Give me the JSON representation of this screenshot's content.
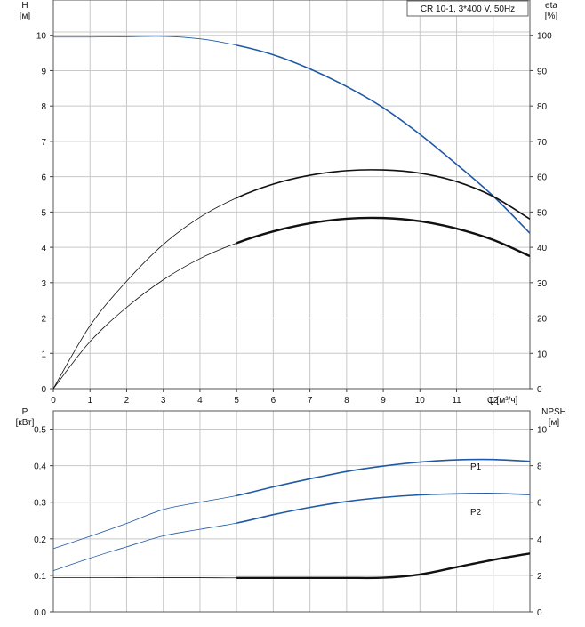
{
  "legend": {
    "title": "CR 10-1, 3*400 V, 50Hz"
  },
  "colors": {
    "blue": "#1f5aa6",
    "black": "#111111",
    "grid": "#c8c8c8"
  },
  "chart_data": [
    {
      "type": "line",
      "panel": "head_efficiency",
      "ylabel_left": {
        "name": "H",
        "unit": "[м]"
      },
      "ylabel_right": {
        "name": "eta",
        "unit": "[%]"
      },
      "xlabel": "Q [м³/ч]",
      "xlim": [
        0,
        13
      ],
      "xticks": [
        "0",
        "1",
        "2",
        "3",
        "4",
        "5",
        "6",
        "7",
        "8",
        "9",
        "10",
        "11",
        "12"
      ],
      "ylim_left": [
        0,
        11
      ],
      "yticks_left": [
        "0",
        "1",
        "2",
        "3",
        "4",
        "5",
        "6",
        "7",
        "8",
        "9",
        "10"
      ],
      "ylim_right": [
        0,
        110
      ],
      "yticks_right": [
        "0",
        "10",
        "20",
        "30",
        "40",
        "50",
        "60",
        "70",
        "80",
        "90",
        "100"
      ],
      "grid": true,
      "series": [
        {
          "axis": "left",
          "color": "blue",
          "x": [
            0,
            1,
            2,
            3,
            4,
            5,
            6,
            7,
            8,
            9,
            10,
            11,
            12,
            13
          ],
          "y": [
            9.95,
            9.95,
            9.96,
            9.97,
            9.9,
            9.72,
            9.45,
            9.05,
            8.55,
            7.95,
            7.2,
            6.35,
            5.45,
            4.4
          ]
        },
        {
          "axis": "right",
          "color": "black",
          "x": [
            0,
            1,
            2,
            3,
            4,
            5,
            6,
            7,
            8,
            9,
            10,
            11,
            12,
            13
          ],
          "y": [
            0,
            17.8,
            30.4,
            40.8,
            48.5,
            54.0,
            57.9,
            60.4,
            61.7,
            61.9,
            61.0,
            58.6,
            54.4,
            48.0
          ]
        },
        {
          "axis": "right",
          "color": "black",
          "x": [
            0,
            1,
            2,
            3,
            4,
            5,
            6,
            7,
            8,
            9,
            10,
            11,
            12,
            13
          ],
          "y": [
            0,
            13.3,
            23.0,
            30.8,
            36.8,
            41.2,
            44.5,
            46.8,
            48.1,
            48.3,
            47.4,
            45.3,
            42.1,
            37.5
          ]
        }
      ]
    },
    {
      "type": "line",
      "panel": "power_npsh",
      "ylabel_left": {
        "name": "P",
        "unit": "[кВт]"
      },
      "ylabel_right": {
        "name": "NPSH",
        "unit": "[м]"
      },
      "xlim": [
        0,
        13
      ],
      "ylim_left": [
        0,
        0.55
      ],
      "yticks_left": [
        "0.0",
        "0.1",
        "0.2",
        "0.3",
        "0.4",
        "0.5"
      ],
      "ylim_right": [
        0,
        11
      ],
      "yticks_right": [
        "0",
        "2",
        "4",
        "6",
        "8",
        "10"
      ],
      "grid": true,
      "series": [
        {
          "name": "P1",
          "axis": "left",
          "color": "blue",
          "x": [
            0,
            1,
            2,
            3,
            4,
            5,
            6,
            7,
            8,
            9,
            10,
            11,
            12,
            13
          ],
          "y": [
            0.173,
            0.207,
            0.242,
            0.28,
            0.3,
            0.318,
            0.342,
            0.364,
            0.384,
            0.399,
            0.41,
            0.416,
            0.417,
            0.412
          ]
        },
        {
          "name": "P2",
          "axis": "left",
          "color": "blue",
          "x": [
            0,
            1,
            2,
            3,
            4,
            5,
            6,
            7,
            8,
            9,
            10,
            11,
            12,
            13
          ],
          "y": [
            0.113,
            0.147,
            0.178,
            0.208,
            0.226,
            0.243,
            0.266,
            0.286,
            0.302,
            0.313,
            0.32,
            0.323,
            0.324,
            0.321
          ]
        },
        {
          "axis": "right",
          "color": "black",
          "x": [
            0,
            1,
            2,
            3,
            4,
            5,
            6,
            7,
            8,
            9,
            10,
            11,
            12,
            13
          ],
          "y": [
            1.88,
            1.88,
            1.87,
            1.87,
            1.87,
            1.86,
            1.86,
            1.86,
            1.86,
            1.87,
            2.05,
            2.45,
            2.85,
            3.2
          ]
        }
      ]
    }
  ]
}
